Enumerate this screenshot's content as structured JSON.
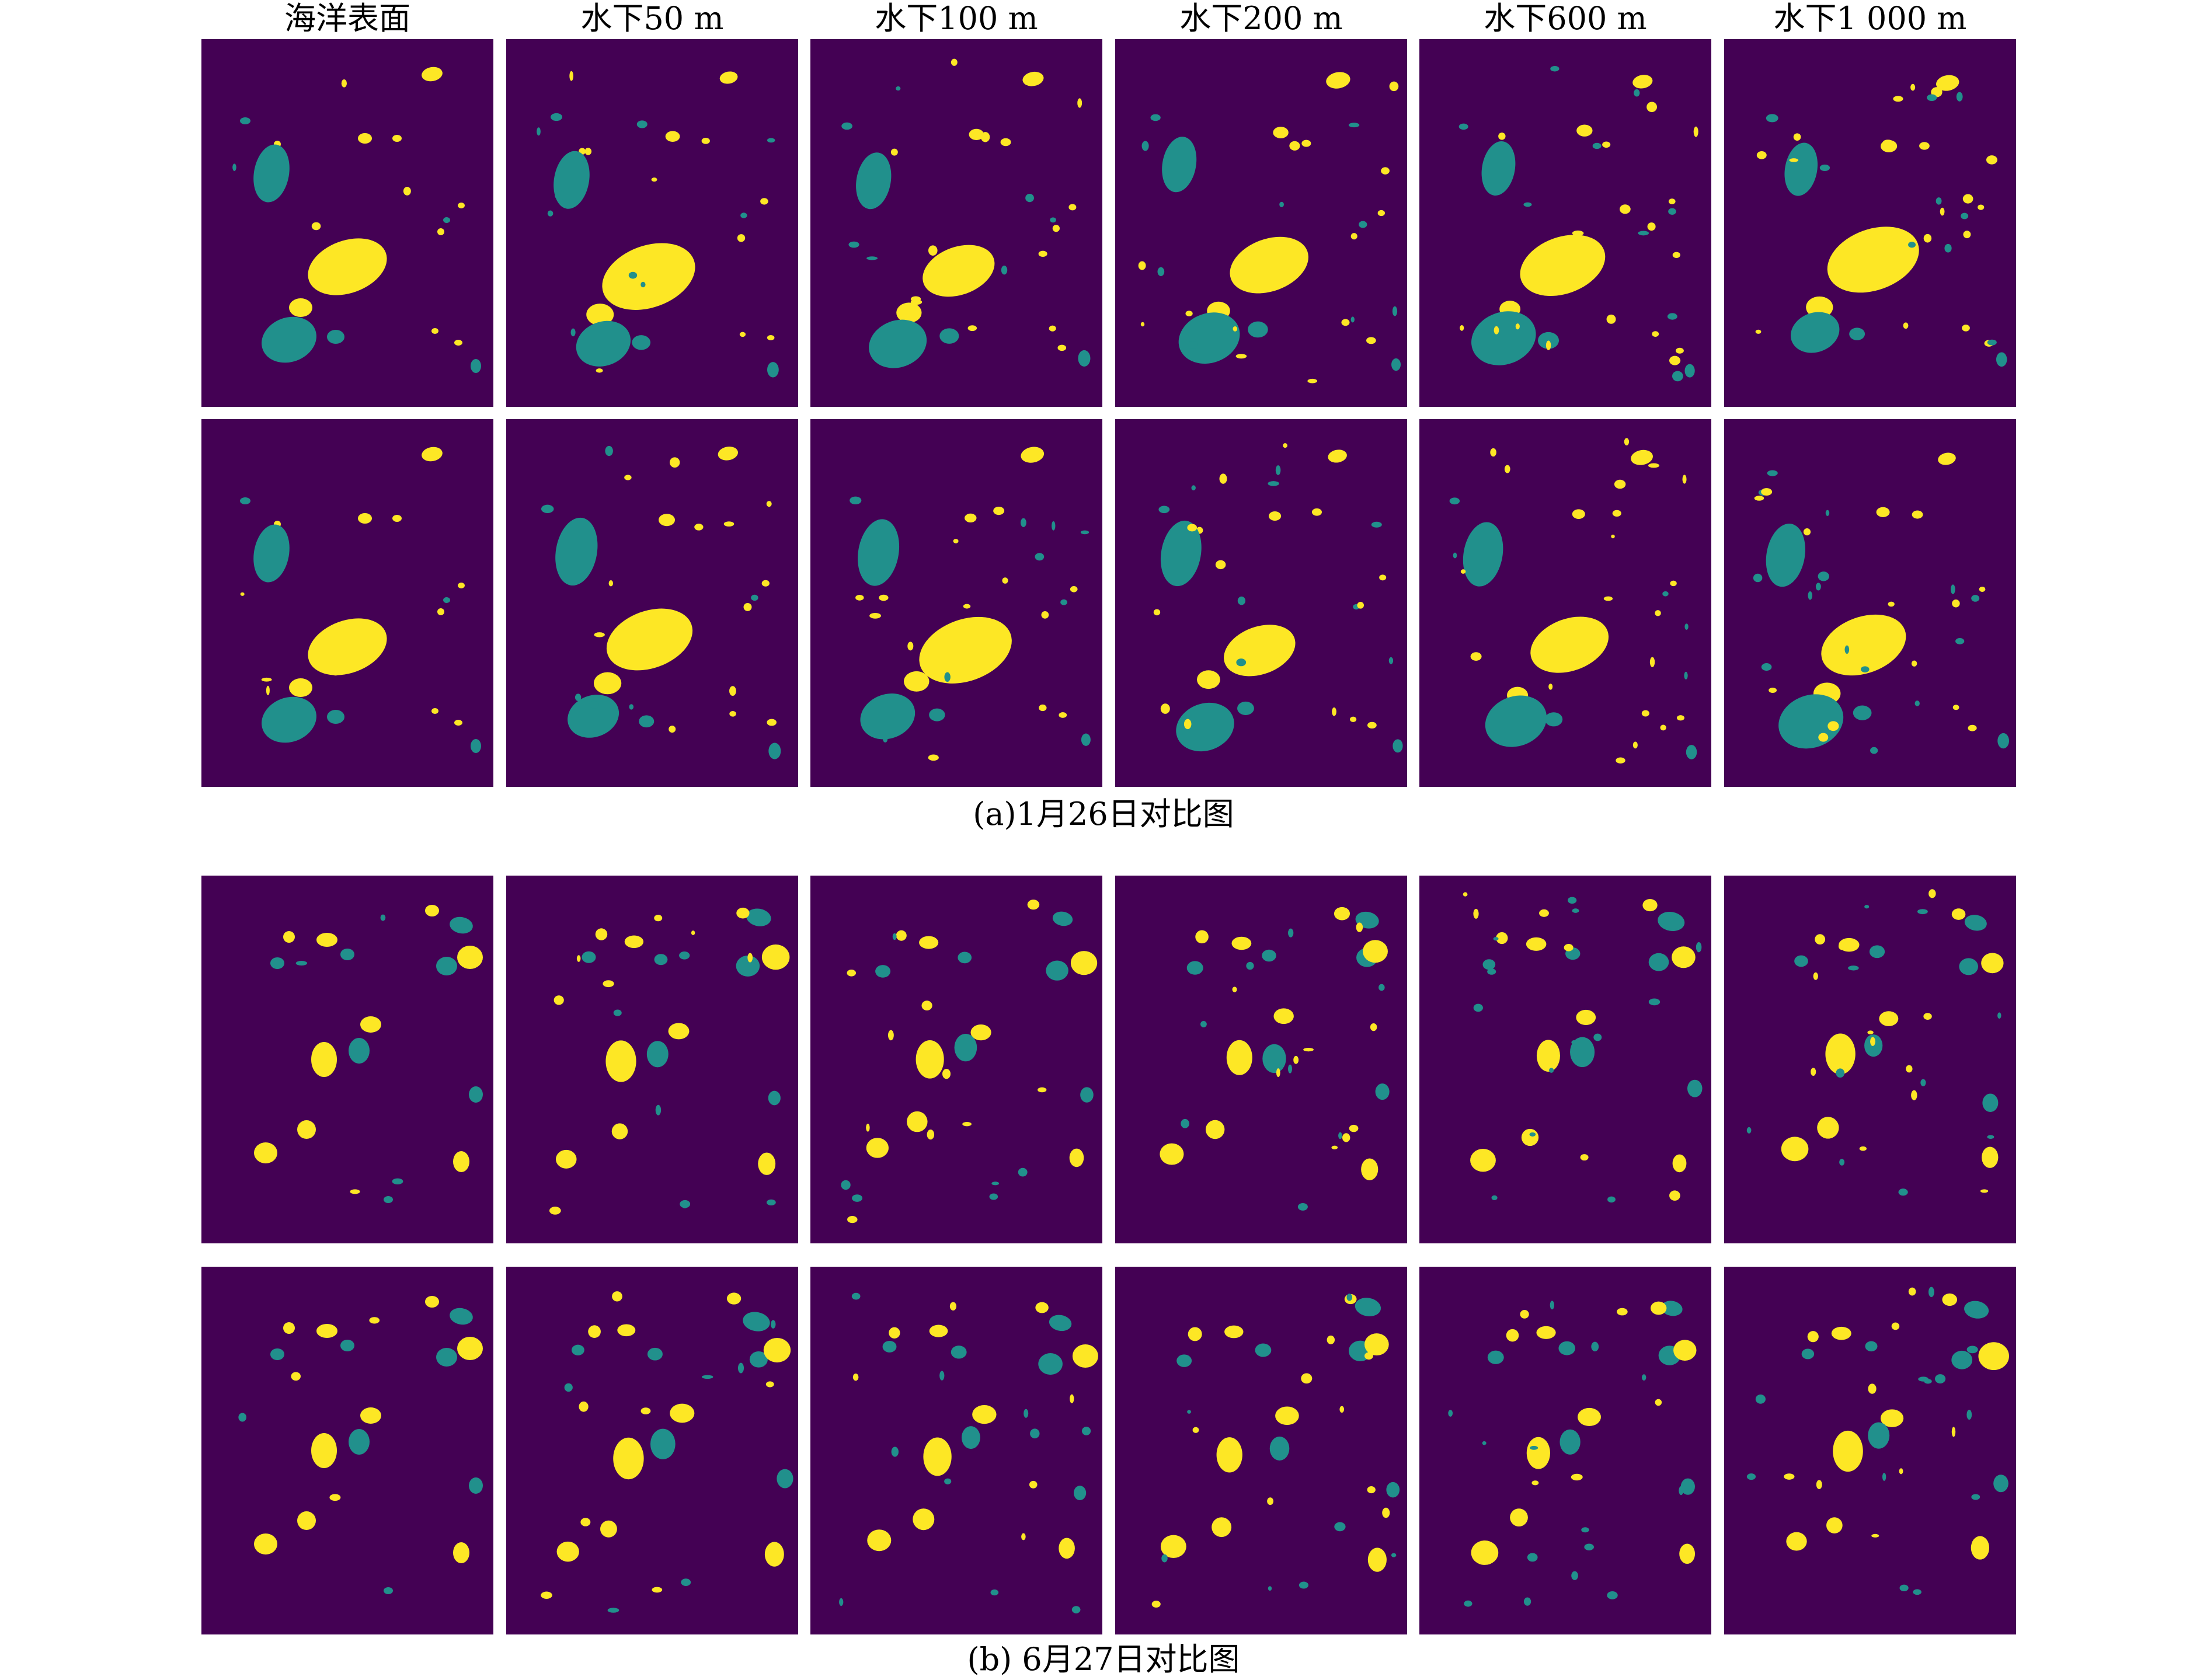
{
  "figure": {
    "column_titles": [
      "海洋表面",
      "水下50 m",
      "水下100 m",
      "水下200 m",
      "水下600 m",
      "水下1 000 m"
    ],
    "groups": [
      {
        "caption": "(a)1月26日对比图",
        "rows": 2
      },
      {
        "caption": "(b) 6月27日对比图",
        "rows": 2
      }
    ],
    "colors": {
      "background": "#440154",
      "teal_class": "#21908c",
      "yellow_class": "#fde725"
    }
  }
}
